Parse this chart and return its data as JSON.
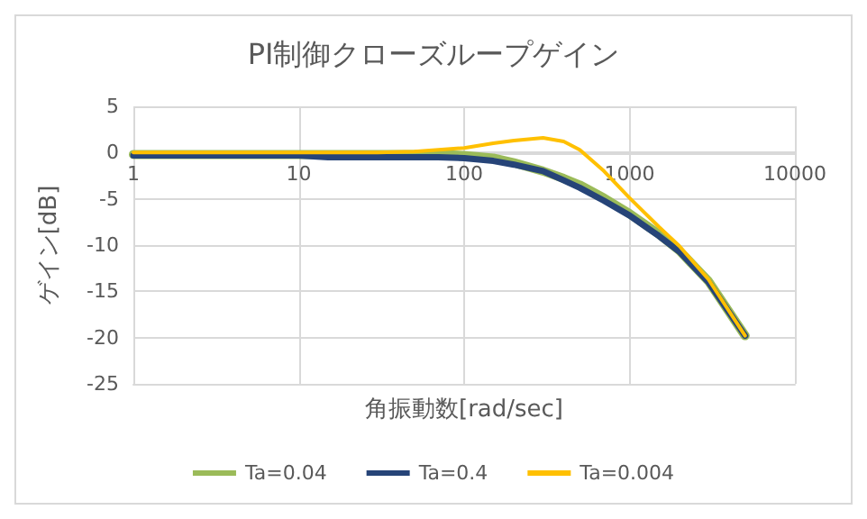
{
  "chart_data": {
    "type": "line",
    "title": "PI制御クローズループゲイン",
    "xlabel": "角振動数[rad/sec]",
    "ylabel": "ゲイン[dB]",
    "log": "x",
    "xlim": [
      1,
      10000
    ],
    "xticks": [
      1,
      10,
      100,
      1000,
      10000
    ],
    "ylim": [
      -25,
      5
    ],
    "yticks": [
      -25,
      -20,
      -15,
      -10,
      -5,
      0,
      5
    ],
    "grid": true,
    "legend": "bottom",
    "marker": "none",
    "line_style": "solid",
    "x": [
      1,
      2,
      5,
      10,
      15,
      30,
      50,
      70,
      100,
      150,
      200,
      300,
      400,
      500,
      700,
      1000,
      1500,
      2000,
      3000,
      5000
    ],
    "series": [
      {
        "name": "Ta=0.04",
        "color": "#9bbb59",
        "values": [
          -0.2,
          -0.2,
          -0.2,
          -0.2,
          -0.2,
          -0.2,
          -0.2,
          -0.2,
          -0.3,
          -0.6,
          -1.1,
          -2.0,
          -2.8,
          -3.5,
          -4.9,
          -6.6,
          -8.8,
          -10.6,
          -13.9,
          -19.8
        ]
      },
      {
        "name": "Ta=0.4",
        "color": "#264478",
        "values": [
          -0.3,
          -0.3,
          -0.3,
          -0.3,
          -0.5,
          -0.5,
          -0.5,
          -0.5,
          -0.6,
          -0.9,
          -1.3,
          -2.0,
          -3.0,
          -3.8,
          -5.2,
          -6.8,
          -9.0,
          -10.7,
          -14.0,
          -19.8
        ]
      },
      {
        "name": "Ta=0.004",
        "color": "#ffc000",
        "values": [
          0,
          0,
          0,
          0,
          0,
          0,
          0.1,
          0.3,
          0.5,
          1.0,
          1.3,
          1.6,
          1.2,
          0.3,
          -2.0,
          -4.9,
          -8.0,
          -10.1,
          -13.7,
          -19.8
        ]
      }
    ]
  }
}
